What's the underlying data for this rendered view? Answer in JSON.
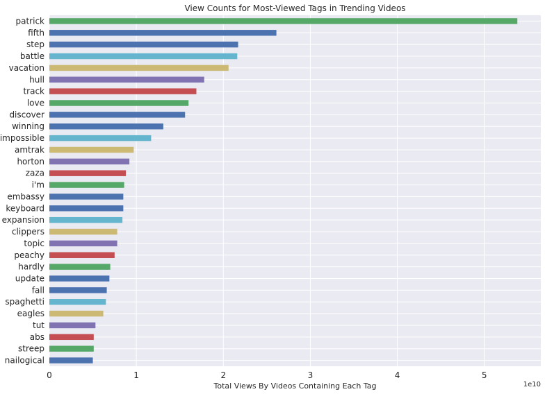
{
  "chart_data": {
    "type": "bar",
    "orientation": "horizontal",
    "title": "View Counts for Most-Viewed Tags in Trending Videos",
    "xlabel": "Total Views By Videos Containing Each Tag",
    "x_offset_label": "1e10",
    "xlim": [
      0,
      5.65
    ],
    "x_ticks": [
      "0",
      "1",
      "2",
      "3",
      "4",
      "5"
    ],
    "grid": true,
    "background_color": "#EAEAF2",
    "palette": [
      "#55A868",
      "#4C72B0",
      "#4C72B0",
      "#64B5CD",
      "#CCB974",
      "#8172B2",
      "#C44E52"
    ],
    "categories": [
      "patrick",
      "fifth",
      "step",
      "battle",
      "vacation",
      "hull",
      "track",
      "love",
      "discover",
      "winning",
      "impossible",
      "amtrak",
      "horton",
      "zaza",
      "i'm",
      "embassy",
      "keyboard",
      "expansion",
      "clippers",
      "topic",
      "peachy",
      "hardly",
      "update",
      "fall",
      "spaghetti",
      "eagles",
      "tut",
      "abs",
      "streep",
      "nailogical"
    ],
    "values": [
      5.38,
      2.61,
      2.17,
      2.16,
      2.06,
      1.78,
      1.69,
      1.6,
      1.56,
      1.31,
      1.17,
      0.97,
      0.92,
      0.88,
      0.86,
      0.85,
      0.85,
      0.84,
      0.78,
      0.78,
      0.75,
      0.7,
      0.69,
      0.66,
      0.65,
      0.62,
      0.53,
      0.51,
      0.51,
      0.5
    ],
    "bar_colors": [
      "#55A868",
      "#4C72B0",
      "#4C72B0",
      "#64B5CD",
      "#CCB974",
      "#8172B2",
      "#C44E52",
      "#55A868",
      "#4C72B0",
      "#4C72B0",
      "#64B5CD",
      "#CCB974",
      "#8172B2",
      "#C44E52",
      "#55A868",
      "#4C72B0",
      "#4C72B0",
      "#64B5CD",
      "#CCB974",
      "#8172B2",
      "#C44E52",
      "#55A868",
      "#4C72B0",
      "#4C72B0",
      "#64B5CD",
      "#CCB974",
      "#8172B2",
      "#C44E52",
      "#55A868",
      "#4C72B0"
    ]
  }
}
